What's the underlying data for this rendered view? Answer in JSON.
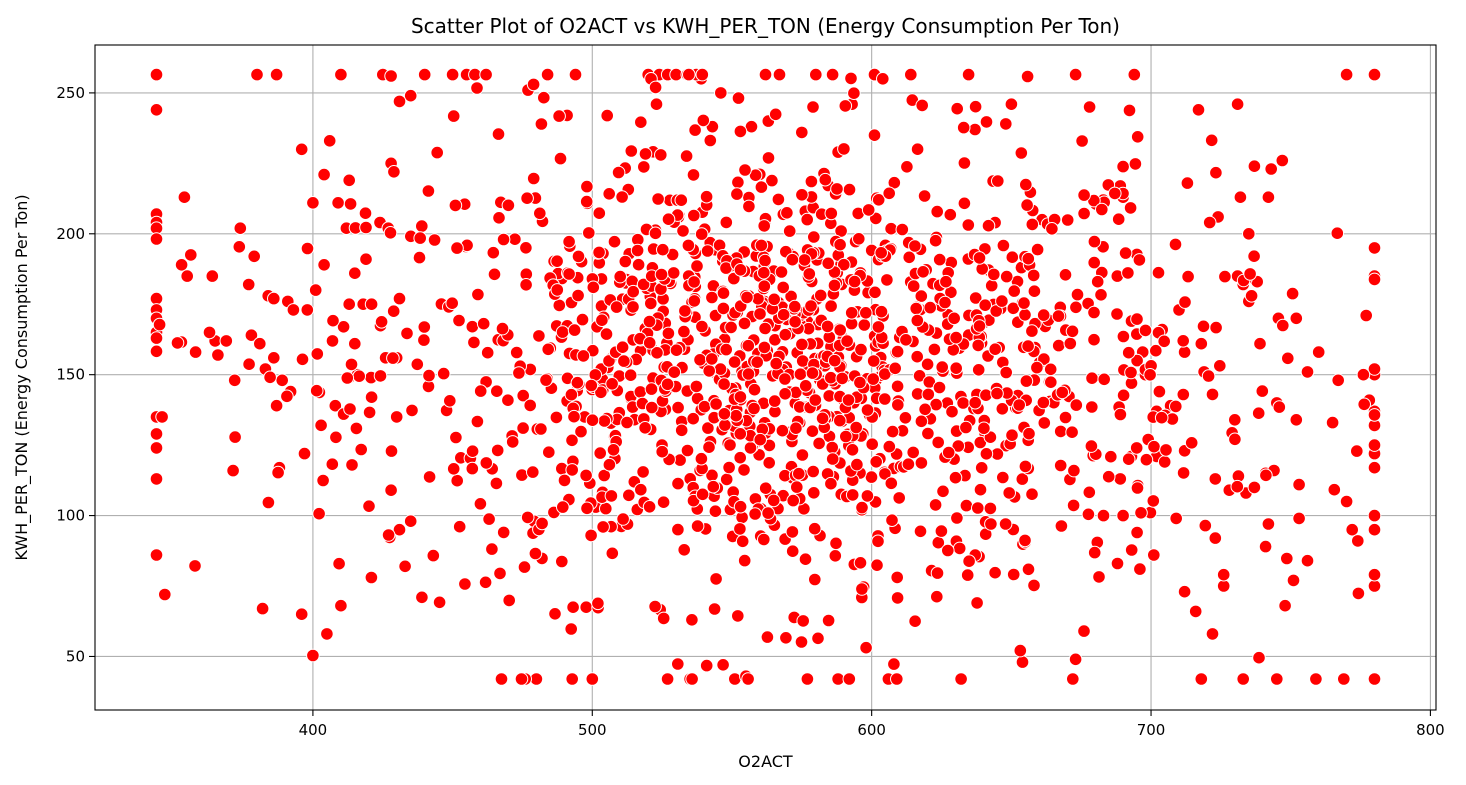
{
  "chart_data": {
    "type": "scatter",
    "title": "Scatter Plot of O2ACT vs KWH_PER_TON (Energy Consumption Per Ton)",
    "xlabel": "O2ACT",
    "ylabel": "KWH_PER_TON (Energy Consumption Per Ton)",
    "xlim": [
      322,
      802
    ],
    "ylim": [
      31,
      267
    ],
    "xticks": [
      400,
      500,
      600,
      700,
      800
    ],
    "yticks": [
      50,
      100,
      150,
      200,
      250
    ],
    "grid": true,
    "marker_color": "#ff0000",
    "marker_edge_color": "#ffffff",
    "generated_bulk": {
      "count": 1400,
      "x_center": 570,
      "x_spread": 75,
      "x_min": 344,
      "x_max": 780,
      "y_center": 152,
      "y_spread": 40,
      "y_min": 42,
      "y_max": 256.5
    },
    "points": [
      [
        344,
        256.5
      ],
      [
        344,
        244
      ],
      [
        344,
        207
      ],
      [
        344,
        204
      ],
      [
        344,
        202
      ],
      [
        344,
        177
      ],
      [
        344,
        173
      ],
      [
        344,
        170
      ],
      [
        344,
        165
      ],
      [
        344,
        163
      ],
      [
        344,
        135
      ],
      [
        344,
        129
      ],
      [
        344,
        124
      ],
      [
        344,
        113
      ],
      [
        344,
        86
      ],
      [
        347,
        72
      ],
      [
        346,
        135
      ],
      [
        353,
        189
      ],
      [
        355,
        185
      ],
      [
        354,
        213
      ],
      [
        358,
        158
      ],
      [
        364,
        185
      ],
      [
        365,
        162
      ],
      [
        363,
        165
      ],
      [
        366,
        157
      ],
      [
        369,
        162
      ],
      [
        372,
        148
      ],
      [
        374,
        202
      ],
      [
        377,
        182
      ],
      [
        378,
        164
      ],
      [
        379,
        192
      ],
      [
        381,
        161
      ],
      [
        383,
        152
      ],
      [
        384,
        178
      ],
      [
        386,
        177
      ],
      [
        386,
        156
      ],
      [
        387,
        139
      ],
      [
        388,
        117
      ],
      [
        389,
        148
      ],
      [
        391,
        176
      ],
      [
        392,
        144
      ],
      [
        393,
        173
      ],
      [
        396,
        230
      ],
      [
        397,
        122
      ],
      [
        398,
        173
      ],
      [
        400,
        211
      ],
      [
        401,
        180
      ],
      [
        404,
        221
      ],
      [
        404,
        189
      ],
      [
        405,
        58
      ],
      [
        406,
        233
      ],
      [
        407,
        162
      ],
      [
        408,
        139
      ],
      [
        409,
        211
      ],
      [
        410,
        68
      ],
      [
        411,
        167
      ],
      [
        411,
        136
      ],
      [
        412,
        202
      ],
      [
        413,
        219
      ],
      [
        413,
        175
      ],
      [
        413,
        149
      ],
      [
        414,
        118
      ],
      [
        415,
        186
      ],
      [
        415,
        161
      ],
      [
        416,
        150
      ],
      [
        418,
        175
      ],
      [
        419,
        191
      ],
      [
        421,
        175
      ],
      [
        421,
        142
      ],
      [
        424,
        204
      ],
      [
        426,
        156
      ],
      [
        427,
        202
      ],
      [
        428,
        225
      ],
      [
        428,
        109
      ],
      [
        429,
        222
      ],
      [
        430,
        156
      ],
      [
        430,
        135
      ],
      [
        431,
        177
      ],
      [
        431,
        95
      ],
      [
        380,
        256.5
      ],
      [
        387,
        256.5
      ],
      [
        410,
        256.5
      ],
      [
        425,
        256.5
      ],
      [
        428,
        256
      ],
      [
        440,
        256.5
      ],
      [
        450,
        256.5
      ],
      [
        455,
        256.5
      ],
      [
        458,
        256.5
      ],
      [
        462,
        256.5
      ],
      [
        382,
        67
      ],
      [
        396,
        65
      ],
      [
        435,
        249
      ],
      [
        431,
        247
      ],
      [
        439,
        71
      ],
      [
        433,
        82
      ],
      [
        435,
        98
      ],
      [
        480,
        42
      ],
      [
        476,
        42
      ],
      [
        500,
        42
      ],
      [
        535,
        42
      ],
      [
        551,
        42
      ],
      [
        555,
        43
      ],
      [
        577,
        42
      ],
      [
        588,
        42
      ],
      [
        592,
        42
      ],
      [
        606,
        42
      ],
      [
        609,
        42
      ],
      [
        632,
        42
      ],
      [
        672,
        42
      ],
      [
        718,
        42
      ],
      [
        733,
        42
      ],
      [
        745,
        42
      ],
      [
        759,
        42
      ],
      [
        769,
        42
      ],
      [
        780,
        42
      ],
      [
        780,
        75
      ],
      [
        780,
        79
      ],
      [
        780,
        95
      ],
      [
        780,
        100
      ],
      [
        780,
        117
      ],
      [
        780,
        122
      ],
      [
        780,
        125
      ],
      [
        780,
        132
      ],
      [
        780,
        137
      ],
      [
        780,
        150
      ],
      [
        780,
        152
      ],
      [
        780,
        185
      ],
      [
        780,
        195
      ],
      [
        780,
        256.5
      ],
      [
        770,
        256.5
      ],
      [
        673,
        256.5
      ],
      [
        694,
        256.5
      ],
      [
        614,
        256.5
      ],
      [
        601,
        256.5
      ],
      [
        586,
        256.5
      ],
      [
        580,
        256.5
      ],
      [
        567,
        256.5
      ],
      [
        562,
        256.5
      ],
      [
        520,
        256.5
      ],
      [
        524,
        256.5
      ],
      [
        527,
        256.5
      ],
      [
        530,
        256.5
      ],
      [
        534,
        256.5
      ],
      [
        537,
        256.5
      ],
      [
        484,
        256.5
      ],
      [
        494,
        256.5
      ],
      [
        604,
        255
      ],
      [
        521,
        255
      ],
      [
        546,
        250
      ],
      [
        539,
        255
      ],
      [
        477,
        251
      ],
      [
        479,
        253
      ],
      [
        491,
        242
      ],
      [
        523,
        246
      ],
      [
        593,
        246
      ],
      [
        579,
        245
      ],
      [
        678,
        245
      ],
      [
        717,
        244
      ],
      [
        731,
        246
      ],
      [
        650,
        246
      ],
      [
        648,
        239
      ],
      [
        637,
        237
      ],
      [
        563,
        240
      ],
      [
        557,
        238
      ],
      [
        543,
        238
      ],
      [
        601,
        235
      ],
      [
        575,
        236
      ],
      [
        588,
        229
      ],
      [
        661,
        205
      ],
      [
        710,
        173
      ],
      [
        713,
        218
      ],
      [
        712,
        158
      ],
      [
        712,
        73
      ],
      [
        719,
        151
      ],
      [
        722,
        143
      ],
      [
        722,
        58
      ],
      [
        726,
        75
      ],
      [
        728,
        109
      ],
      [
        734,
        108
      ],
      [
        737,
        110
      ],
      [
        741,
        115
      ],
      [
        748,
        68
      ],
      [
        751,
        77
      ],
      [
        753,
        99
      ],
      [
        756,
        84
      ],
      [
        760,
        158
      ],
      [
        765,
        133
      ],
      [
        767,
        148
      ],
      [
        772,
        95
      ],
      [
        774,
        91
      ],
      [
        770,
        105
      ],
      [
        776,
        150
      ],
      [
        777,
        171
      ],
      [
        756,
        151
      ],
      [
        753,
        111
      ],
      [
        752,
        134
      ],
      [
        752,
        170
      ],
      [
        745,
        140
      ],
      [
        744,
        116
      ],
      [
        742,
        97
      ],
      [
        741,
        89
      ],
      [
        739,
        161
      ],
      [
        742,
        213
      ],
      [
        743,
        223
      ],
      [
        747,
        226
      ],
      [
        738,
        183
      ],
      [
        737,
        224
      ],
      [
        732,
        213
      ],
      [
        734,
        184
      ],
      [
        733,
        182
      ],
      [
        731,
        185
      ],
      [
        735,
        176
      ],
      [
        735,
        200
      ],
      [
        736,
        178
      ],
      [
        730,
        134
      ],
      [
        724,
        206
      ],
      [
        721,
        204
      ],
      [
        723,
        113
      ],
      [
        723,
        92
      ],
      [
        726,
        79
      ],
      [
        718,
        161
      ],
      [
        716,
        66
      ],
      [
        712,
        123
      ],
      [
        709,
        99
      ],
      [
        707,
        139
      ],
      [
        705,
        135
      ],
      [
        704,
        166
      ],
      [
        703,
        144
      ],
      [
        702,
        137
      ],
      [
        702,
        121
      ],
      [
        701,
        86
      ],
      [
        699,
        127
      ],
      [
        697,
        158
      ],
      [
        695,
        155
      ],
      [
        693,
        169
      ],
      [
        690,
        213
      ],
      [
        689,
        217
      ],
      [
        693,
        147
      ],
      [
        693,
        121
      ],
      [
        692,
        120
      ],
      [
        690,
        100
      ],
      [
        689,
        113
      ],
      [
        688,
        83
      ],
      [
        695,
        94
      ],
      [
        696,
        81
      ],
      [
        654,
        48
      ],
      [
        673,
        49
      ],
      [
        676,
        59
      ],
      [
        683,
        100
      ]
    ]
  }
}
